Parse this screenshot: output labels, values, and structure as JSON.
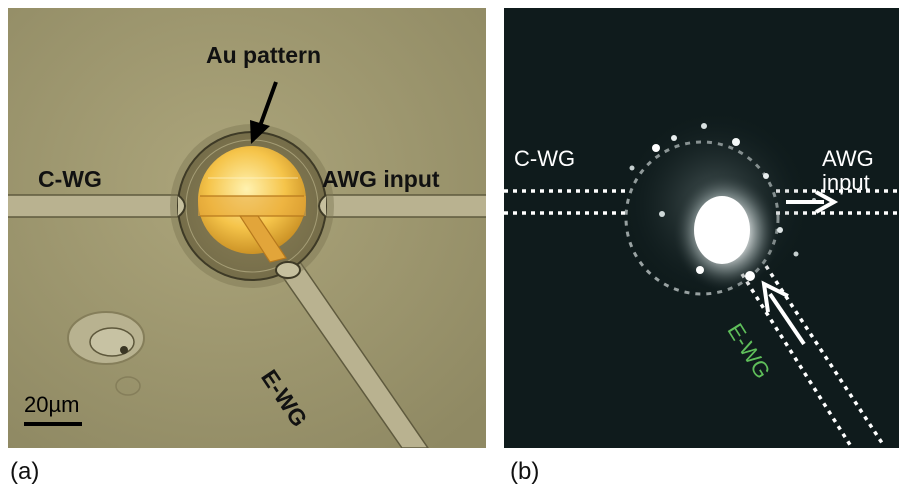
{
  "panel_a": {
    "letter": "(a)",
    "label_au_pattern": "Au pattern",
    "label_cwg": "C-WG",
    "label_awg_input": "AWG input",
    "label_ewg": "E-WG",
    "scale_bar": "20µm"
  },
  "panel_b": {
    "letter": "(b)",
    "label_cwg": "C-WG",
    "label_awg_line1": "AWG",
    "label_awg_line2": "input",
    "label_ewg": "E-WG"
  },
  "colors": {
    "micrograph_bg": "#a39c72",
    "gold": "#f7c045",
    "dark_bg": "#0f1b1c",
    "ewg_label_green": "#5fbf5a"
  }
}
